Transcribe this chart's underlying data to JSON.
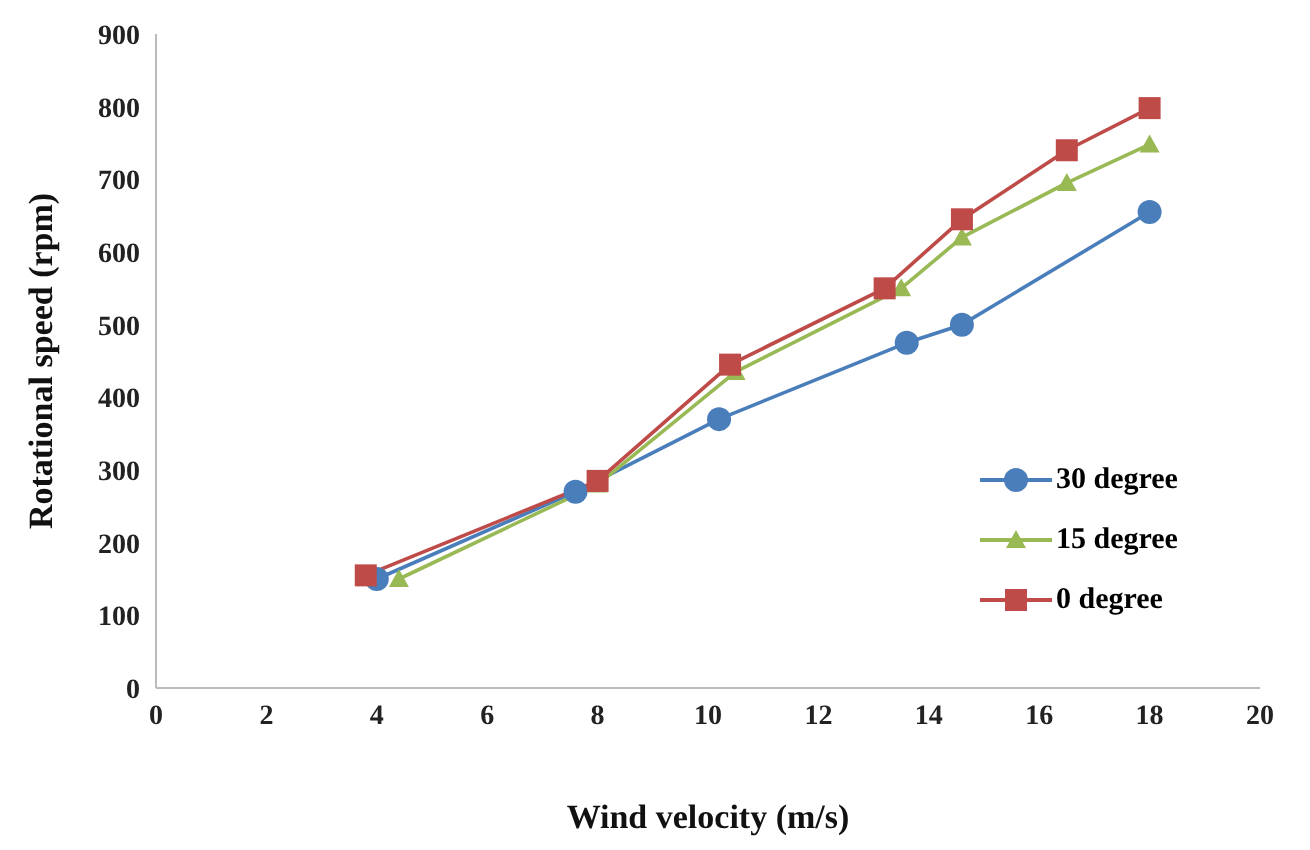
{
  "chart_data": {
    "type": "line",
    "xlabel": "Wind velocity (m/s)",
    "ylabel": "Rotational speed (rpm)",
    "xlim": [
      0,
      20
    ],
    "xticks": [
      0,
      2,
      4,
      6,
      8,
      10,
      12,
      14,
      16,
      18,
      20
    ],
    "ylim": [
      0,
      900
    ],
    "yticks": [
      0,
      100,
      200,
      300,
      400,
      500,
      600,
      700,
      800,
      900
    ],
    "grid": false,
    "legend": "right",
    "series": [
      {
        "name": "30 degree",
        "color": "#4a7ebb",
        "marker": "circle",
        "x": [
          4,
          7.6,
          10.2,
          13.6,
          14.6,
          18
        ],
        "values": [
          150,
          270,
          370,
          475,
          500,
          655
        ]
      },
      {
        "name": "15 degree",
        "color": "#98b954",
        "marker": "triangle",
        "x": [
          4.4,
          8,
          10.5,
          13.5,
          14.6,
          16.5,
          18
        ],
        "values": [
          150,
          280,
          435,
          550,
          620,
          695,
          748
        ]
      },
      {
        "name": "0 degree",
        "color": "#be4b48",
        "marker": "square",
        "x": [
          3.8,
          8,
          10.4,
          13.2,
          14.6,
          16.5,
          18
        ],
        "values": [
          155,
          285,
          445,
          550,
          645,
          740,
          798
        ]
      }
    ]
  }
}
